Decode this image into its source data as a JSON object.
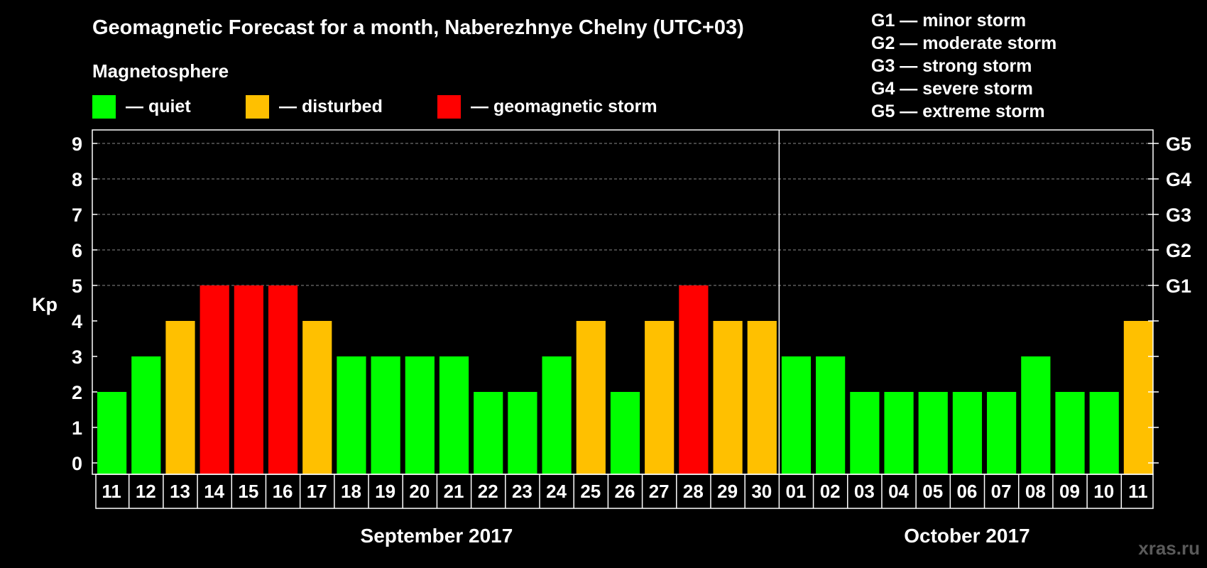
{
  "chart_data": {
    "type": "bar",
    "title": "Geomagnetic Forecast for a month, Naberezhnye Chelny (UTC+03)",
    "subtitle": "Magnetosphere",
    "ylabel": "Kp",
    "ylim": [
      0,
      9
    ],
    "yticks": [
      "0",
      "1",
      "2",
      "3",
      "4",
      "5",
      "6",
      "7",
      "8",
      "9"
    ],
    "grid": true,
    "right_axis_labels": [
      {
        "kp": 5,
        "label": "G1"
      },
      {
        "kp": 6,
        "label": "G2"
      },
      {
        "kp": 7,
        "label": "G3"
      },
      {
        "kp": 8,
        "label": "G4"
      },
      {
        "kp": 9,
        "label": "G5"
      }
    ],
    "legend": [
      {
        "label": "— quiet",
        "color": "#00ff00"
      },
      {
        "label": "— disturbed",
        "color": "#ffc000"
      },
      {
        "label": "— geomagnetic storm",
        "color": "#ff0000"
      }
    ],
    "storm_scale_legend": [
      "G1 — minor storm",
      "G2 — moderate storm",
      "G3 — strong storm",
      "G4 — severe storm",
      "G5 — extreme storm"
    ],
    "categories": [
      "11",
      "12",
      "13",
      "14",
      "15",
      "16",
      "17",
      "18",
      "19",
      "20",
      "21",
      "22",
      "23",
      "24",
      "25",
      "26",
      "27",
      "28",
      "29",
      "30",
      "01",
      "02",
      "03",
      "04",
      "05",
      "06",
      "07",
      "08",
      "09",
      "10",
      "11"
    ],
    "values": [
      2,
      3,
      4,
      5,
      5,
      5,
      4,
      3,
      3,
      3,
      3,
      2,
      2,
      3,
      4,
      2,
      4,
      5,
      4,
      4,
      3,
      3,
      2,
      2,
      2,
      2,
      2,
      3,
      2,
      2,
      4
    ],
    "months": [
      {
        "label": "September 2017",
        "first_index": 0,
        "last_index": 19
      },
      {
        "label": "October 2017",
        "first_index": 20,
        "last_index": 30
      }
    ],
    "colors": {
      "quiet": "#00ff00",
      "disturbed": "#ffc000",
      "storm": "#ff0000"
    }
  },
  "watermark": "xras.ru"
}
